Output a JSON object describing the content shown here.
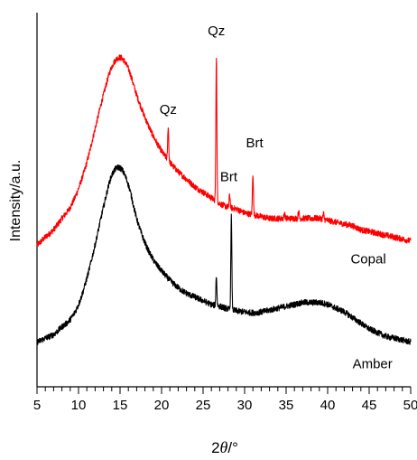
{
  "chart_data": {
    "type": "line",
    "title": "",
    "xlabel": "2θ/°",
    "xlabel_parts": {
      "num": "2",
      "theta": "θ",
      "unit": "/°"
    },
    "ylabel": "Intensity/a.u.",
    "xlim": [
      5,
      50
    ],
    "ylim": [
      0,
      100
    ],
    "y_ticks_shown": false,
    "grid": false,
    "x_ticks": [
      5,
      10,
      15,
      20,
      25,
      30,
      35,
      40,
      45,
      50
    ],
    "x_tick_labels": [
      "5",
      "10",
      "15",
      "20",
      "25",
      "30",
      "35",
      "40",
      "45",
      "50"
    ],
    "series": [
      {
        "name": "Copal",
        "color": "#ff0000",
        "x": [
          5,
          6,
          7,
          8,
          9,
          10,
          11,
          12,
          13,
          14,
          15,
          16,
          17,
          18,
          19,
          20,
          21,
          22,
          23,
          24,
          25,
          26,
          27,
          28,
          29,
          30,
          31,
          32,
          33,
          34,
          35,
          36,
          37,
          38,
          39,
          40,
          41,
          42,
          43,
          44,
          45,
          46,
          47,
          48,
          49,
          50
        ],
        "y": [
          38,
          40,
          42,
          45,
          48,
          53,
          60,
          69,
          78,
          85.5,
          88,
          85,
          78,
          72,
          67,
          63,
          60,
          57.5,
          55.5,
          53.5,
          52,
          50.5,
          49,
          48,
          47.5,
          46.5,
          46,
          45.5,
          45,
          45,
          45,
          45,
          45,
          45,
          45,
          44.5,
          44,
          43.5,
          43,
          42,
          41.5,
          41,
          40.5,
          40,
          39.5,
          39
        ],
        "peaks": [
          {
            "x": 20.8,
            "height": 9
          },
          {
            "x": 26.6,
            "height": 39
          },
          {
            "x": 28.2,
            "height": 3.5
          },
          {
            "x": 31.0,
            "height": 11
          },
          {
            "x": 34.8,
            "height": 1.5
          },
          {
            "x": 36.5,
            "height": 2
          },
          {
            "x": 39.5,
            "height": 1.5
          }
        ]
      },
      {
        "name": "Amber",
        "color": "#000000",
        "x": [
          5,
          6,
          7,
          8,
          9,
          10,
          11,
          12,
          13,
          14,
          15,
          16,
          17,
          18,
          19,
          20,
          21,
          22,
          23,
          24,
          25,
          26,
          27,
          28,
          29,
          30,
          31,
          32,
          33,
          34,
          35,
          36,
          37,
          38,
          39,
          40,
          41,
          42,
          43,
          44,
          45,
          46,
          47,
          48,
          49,
          50
        ],
        "y": [
          12,
          13,
          14,
          16,
          18,
          22,
          29,
          38,
          48,
          56.5,
          58.5,
          54,
          45,
          38.5,
          34,
          31,
          28.5,
          26.5,
          25,
          24,
          23,
          22,
          21.5,
          20.8,
          20.3,
          20,
          19.8,
          20,
          20.5,
          21,
          21.5,
          22,
          22.5,
          22.5,
          22.5,
          22,
          21,
          20,
          18.5,
          17,
          15.5,
          14.5,
          13.5,
          13,
          12.5,
          12
        ],
        "peaks": [
          {
            "x": 26.6,
            "height": 8
          },
          {
            "x": 28.4,
            "height": 25
          }
        ]
      }
    ],
    "annotations": [
      {
        "text": "Qz",
        "x": 20.8,
        "y": 73
      },
      {
        "text": "Qz",
        "x": 26.6,
        "y": 94
      },
      {
        "text": "Brt",
        "x": 28.1,
        "y": 55
      },
      {
        "text": "Brt",
        "x": 31.2,
        "y": 64
      }
    ],
    "series_labels": [
      {
        "text": "Copal",
        "x": 44.9,
        "y": 33
      },
      {
        "text": "Amber",
        "x": 45.4,
        "y": 5
      }
    ]
  }
}
